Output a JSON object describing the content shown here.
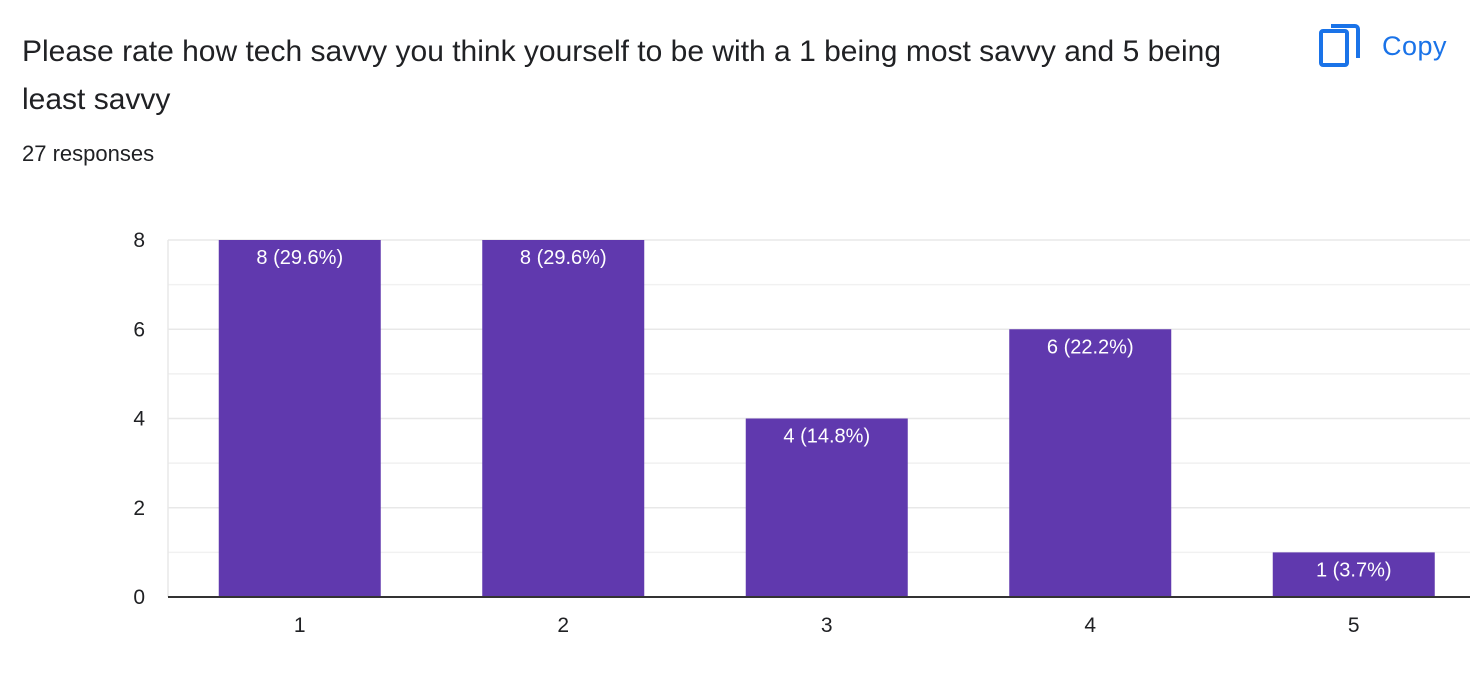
{
  "question": {
    "title": "Please rate how tech savvy you think yourself to be with a 1 being most savvy and 5 being least savvy",
    "response_count": "27 responses"
  },
  "toolbar": {
    "copy_label": "Copy",
    "copy_icon": "copy-icon"
  },
  "colors": {
    "bar": "#6039ae",
    "accent": "#1a73e8",
    "grid": "#e8e8e8",
    "axis": "#333333"
  },
  "chart_data": {
    "type": "bar",
    "categories": [
      "1",
      "2",
      "3",
      "4",
      "5"
    ],
    "values": [
      8,
      8,
      4,
      6,
      1
    ],
    "data_labels": [
      "8 (29.6%)",
      "8 (29.6%)",
      "4 (14.8%)",
      "6 (22.2%)",
      "1 (3.7%)"
    ],
    "y_ticks": [
      0,
      2,
      4,
      6,
      8
    ],
    "ylim": [
      0,
      8
    ],
    "title": "",
    "xlabel": "",
    "ylabel": "",
    "grid": true,
    "legend": "none"
  }
}
